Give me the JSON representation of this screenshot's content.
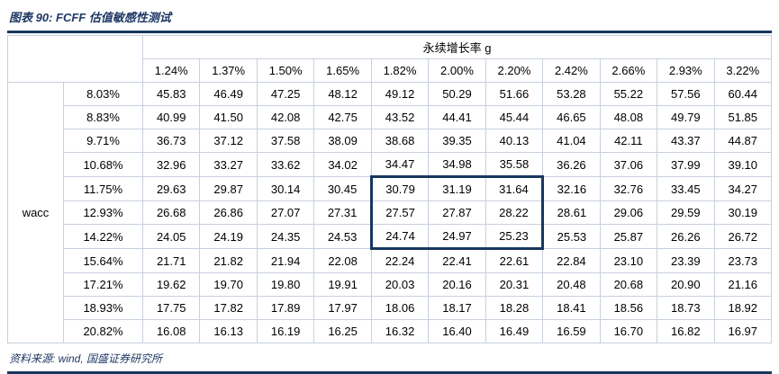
{
  "colors": {
    "accent_navy": "#17375e",
    "title_navy": "#1f3864",
    "grid_border": "#c8d0de",
    "value_text": "#000000"
  },
  "chart_data": {
    "type": "table",
    "title": "图表 90:  FCFF 估值敏感性测试",
    "column_axis_label": "永续增长率 g",
    "row_axis_label": "wacc",
    "columns": [
      "1.24%",
      "1.37%",
      "1.50%",
      "1.65%",
      "1.82%",
      "2.00%",
      "2.20%",
      "2.42%",
      "2.66%",
      "2.93%",
      "3.22%"
    ],
    "rows": [
      "8.03%",
      "8.83%",
      "9.71%",
      "10.68%",
      "11.75%",
      "12.93%",
      "14.22%",
      "15.64%",
      "17.21%",
      "18.93%",
      "20.82%"
    ],
    "values": [
      [
        "45.83",
        "46.49",
        "47.25",
        "48.12",
        "49.12",
        "50.29",
        "51.66",
        "53.28",
        "55.22",
        "57.56",
        "60.44"
      ],
      [
        "40.99",
        "41.50",
        "42.08",
        "42.75",
        "43.52",
        "44.41",
        "45.44",
        "46.65",
        "48.08",
        "49.79",
        "51.85"
      ],
      [
        "36.73",
        "37.12",
        "37.58",
        "38.09",
        "38.68",
        "39.35",
        "40.13",
        "41.04",
        "42.11",
        "43.37",
        "44.87"
      ],
      [
        "32.96",
        "33.27",
        "33.62",
        "34.02",
        "34.47",
        "34.98",
        "35.58",
        "36.26",
        "37.06",
        "37.99",
        "39.10"
      ],
      [
        "29.63",
        "29.87",
        "30.14",
        "30.45",
        "30.79",
        "31.19",
        "31.64",
        "32.16",
        "32.76",
        "33.45",
        "34.27"
      ],
      [
        "26.68",
        "26.86",
        "27.07",
        "27.31",
        "27.57",
        "27.87",
        "28.22",
        "28.61",
        "29.06",
        "29.59",
        "30.19"
      ],
      [
        "24.05",
        "24.19",
        "24.35",
        "24.53",
        "24.74",
        "24.97",
        "25.23",
        "25.53",
        "25.87",
        "26.26",
        "26.72"
      ],
      [
        "21.71",
        "21.82",
        "21.94",
        "22.08",
        "22.24",
        "22.41",
        "22.61",
        "22.84",
        "23.10",
        "23.39",
        "23.73"
      ],
      [
        "19.62",
        "19.70",
        "19.80",
        "19.91",
        "20.03",
        "20.16",
        "20.31",
        "20.48",
        "20.68",
        "20.90",
        "21.16"
      ],
      [
        "17.75",
        "17.82",
        "17.89",
        "17.97",
        "18.06",
        "18.17",
        "18.28",
        "18.41",
        "18.56",
        "18.73",
        "18.92"
      ],
      [
        "16.08",
        "16.13",
        "16.19",
        "16.25",
        "16.32",
        "16.40",
        "16.49",
        "16.59",
        "16.70",
        "16.82",
        "16.97"
      ]
    ],
    "highlight": {
      "description": "navy box around central sensitivity region",
      "row_start": 4,
      "row_end": 6,
      "col_start": 4,
      "col_end": 6,
      "highlighted_rows": [
        "11.75%",
        "12.93%",
        "14.22%"
      ],
      "highlighted_cols": [
        "1.82%",
        "2.00%",
        "2.20%"
      ],
      "border_color": "#17375e"
    },
    "source": "资料来源: wind, 国盛证券研究所",
    "layout": {
      "grid": true,
      "legend": "none"
    }
  }
}
